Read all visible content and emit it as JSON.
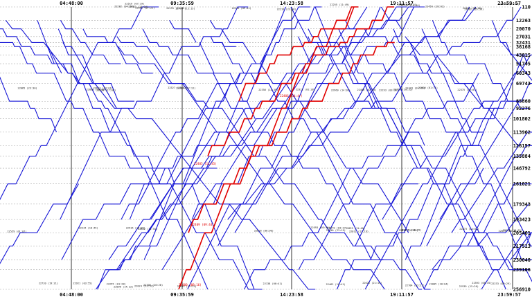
{
  "chart_data": {
    "type": "line",
    "time_ticks": [
      "04:48:00",
      "09:35:59",
      "14:23:58",
      "19:11:57",
      "23:59:57"
    ],
    "station_ticks": [
      110,
      12263,
      20070,
      27031,
      32431,
      36168,
      43815,
      51745,
      60343,
      69743,
      85860,
      92276,
      101802,
      113962,
      126157,
      135884,
      146792,
      161021,
      179343,
      193423,
      205461,
      217513,
      230040,
      239106,
      256910
    ],
    "grid": true,
    "colors": {
      "normal": "#1515d6",
      "highlight": "#e00000"
    },
    "highlight_labels": [
      "22406 (14:4*)",
      "22405 (11:45)",
      "22409 (09:44)",
      "22400 (09:16)"
    ]
  }
}
